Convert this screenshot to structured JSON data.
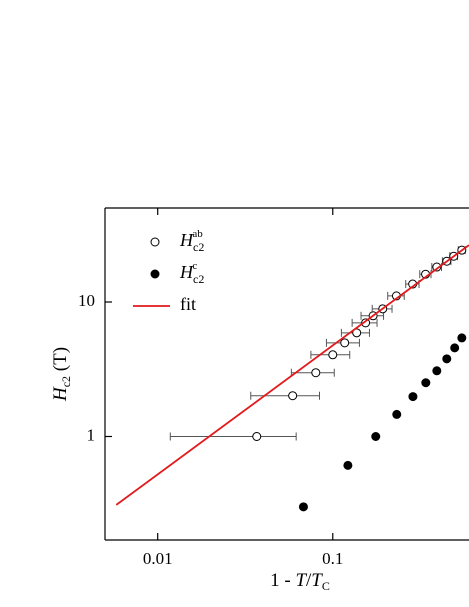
{
  "chart_data": {
    "type": "scatter",
    "xscale": "log",
    "yscale": "log",
    "xlim": [
      0.005,
      0.6
    ],
    "ylim": [
      0.17,
      50
    ],
    "xticks": [
      0.01,
      0.1
    ],
    "yticks": [
      1,
      10
    ],
    "x_label": {
      "pre": "1 - ",
      "var": "T",
      "slash": "/",
      "var2": "T",
      "sub": "C"
    },
    "y_label": {
      "var": "H",
      "sub": "c2",
      "unit": " (T)"
    },
    "series": [
      {
        "name": "H",
        "subscript": "c2",
        "superscript": "ab",
        "marker": "open-circle",
        "color": "#000000",
        "x": [
          0.0368,
          0.059,
          0.08,
          0.1,
          0.117,
          0.137,
          0.154,
          0.17,
          0.193,
          0.231,
          0.286,
          0.339,
          0.393,
          0.448,
          0.491,
          0.546
        ],
        "values": [
          1.0,
          2.01,
          2.98,
          4.05,
          4.97,
          5.9,
          7.0,
          7.9,
          8.9,
          11.1,
          13.6,
          16.1,
          18.2,
          20.1,
          21.9,
          24.3
        ],
        "xerr": [
          0.025,
          0.025,
          0.022,
          0.025,
          0.025,
          0.025,
          0.025,
          0.025,
          0.025,
          0.025,
          0.025,
          0.025,
          0.025,
          0.025,
          0.025,
          0.025
        ]
      },
      {
        "name": "H",
        "subscript": "c2",
        "superscript": "c",
        "marker": "filled-circle",
        "color": "#000000",
        "x": [
          0.068,
          0.122,
          0.176,
          0.232,
          0.287,
          0.34,
          0.393,
          0.448,
          0.497,
          0.546
        ],
        "values": [
          0.3,
          0.61,
          1.0,
          1.46,
          1.98,
          2.51,
          3.08,
          3.78,
          4.56,
          5.41
        ]
      },
      {
        "name": "fit",
        "marker": "line",
        "color": "#e31a1c",
        "x": [
          0.0058,
          0.6
        ],
        "values": [
          0.31,
          26.5
        ]
      }
    ]
  }
}
